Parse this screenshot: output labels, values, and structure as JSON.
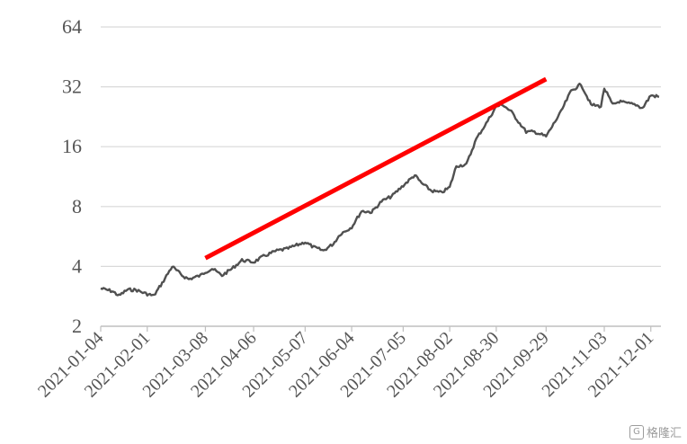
{
  "chart_data": {
    "type": "line",
    "title": "",
    "xlabel": "",
    "ylabel": "",
    "y_scale": "log2",
    "ylim": [
      2,
      64
    ],
    "y_ticks": [
      2,
      4,
      8,
      16,
      32,
      64
    ],
    "grid": "horizontal",
    "x_ticks": [
      "2021-01-04",
      "2021-02-01",
      "2021-03-08",
      "2021-04-06",
      "2021-05-07",
      "2021-06-04",
      "2021-07-05",
      "2021-08-02",
      "2021-08-30",
      "2021-09-29",
      "2021-11-03",
      "2021-12-01"
    ],
    "series": [
      {
        "color": "#505050",
        "x": [
          "2021-01-04",
          "2021-01-11",
          "2021-01-15",
          "2021-01-20",
          "2021-01-25",
          "2021-02-01",
          "2021-02-05",
          "2021-02-10",
          "2021-02-16",
          "2021-02-22",
          "2021-02-26",
          "2021-03-05",
          "2021-03-08",
          "2021-03-12",
          "2021-03-18",
          "2021-03-24",
          "2021-03-30",
          "2021-04-06",
          "2021-04-12",
          "2021-04-20",
          "2021-04-26",
          "2021-05-07",
          "2021-05-12",
          "2021-05-18",
          "2021-05-24",
          "2021-05-28",
          "2021-06-04",
          "2021-06-10",
          "2021-06-16",
          "2021-06-22",
          "2021-06-28",
          "2021-07-05",
          "2021-07-12",
          "2021-07-16",
          "2021-07-22",
          "2021-07-28",
          "2021-08-02",
          "2021-08-06",
          "2021-08-12",
          "2021-08-18",
          "2021-08-24",
          "2021-08-30",
          "2021-09-03",
          "2021-09-08",
          "2021-09-14",
          "2021-09-17",
          "2021-09-22",
          "2021-09-29",
          "2021-10-08",
          "2021-10-14",
          "2021-10-20",
          "2021-10-26",
          "2021-11-01",
          "2021-11-03",
          "2021-11-08",
          "2021-11-12",
          "2021-11-16",
          "2021-11-22",
          "2021-11-26",
          "2021-12-01",
          "2021-12-06"
        ],
        "values": [
          3.1,
          3.0,
          2.85,
          3.05,
          3.05,
          2.9,
          2.85,
          3.3,
          4.0,
          3.6,
          3.45,
          3.6,
          3.75,
          3.9,
          3.6,
          3.9,
          4.3,
          4.2,
          4.5,
          4.8,
          4.9,
          5.3,
          5.0,
          4.8,
          5.2,
          5.8,
          6.3,
          7.6,
          7.5,
          8.5,
          9.0,
          10.2,
          11.5,
          10.5,
          9.6,
          9.4,
          10.0,
          12.8,
          13.0,
          17.5,
          21.0,
          25.5,
          26.0,
          24.0,
          20.5,
          19.0,
          19.0,
          18.0,
          24.0,
          30.5,
          33.0,
          26.0,
          25.5,
          31.5,
          26.0,
          27.0,
          26.5,
          26.0,
          25.0,
          29.0,
          28.5
        ]
      },
      {
        "color": "#ff0000",
        "x": [
          "2021-03-08",
          "2021-09-29"
        ],
        "values": [
          4.4,
          35.0
        ]
      }
    ]
  },
  "watermark": {
    "text": "格隆汇"
  }
}
